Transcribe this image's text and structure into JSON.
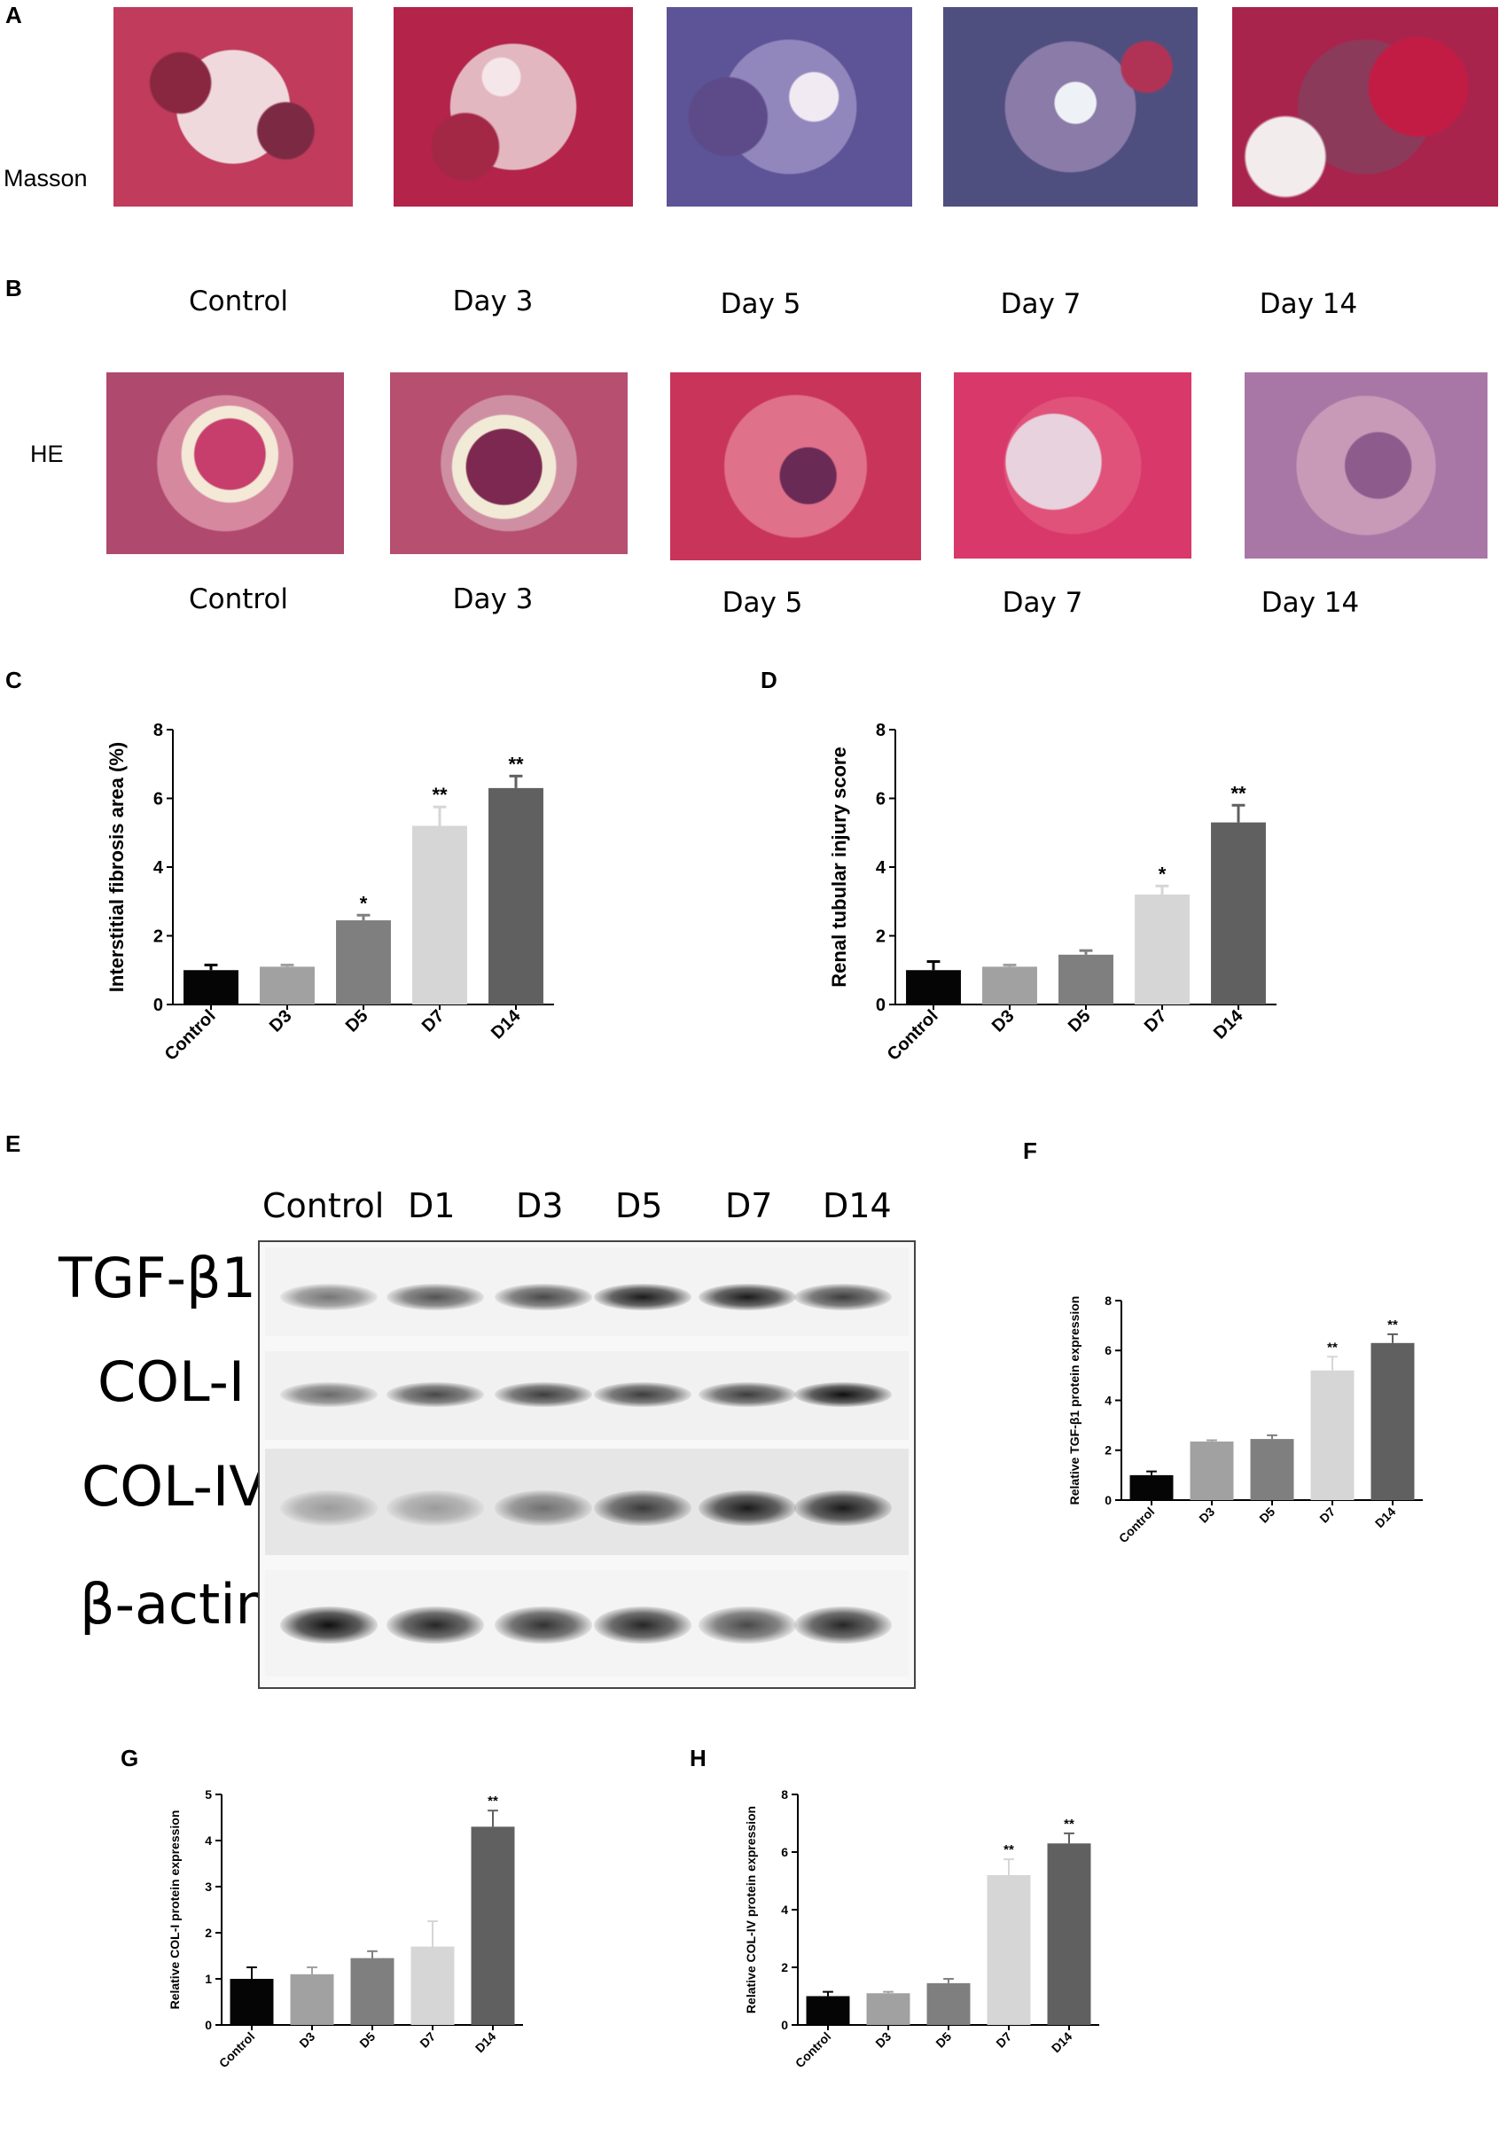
{
  "panels": {
    "A": "A",
    "B": "B",
    "C": "C",
    "D": "D",
    "E": "E",
    "F": "F",
    "G": "G",
    "H": "H"
  },
  "row_labels": {
    "masson": "Masson",
    "he": "HE"
  },
  "captions_a": [
    "Control",
    "Day 3",
    "Day 5",
    "Day 7",
    "Day 14"
  ],
  "captions_b": [
    "Control",
    "Day 3",
    "Day 5",
    "Day 7",
    "Day 14"
  ],
  "blot": {
    "lanes": [
      "Control",
      "D1",
      "D3",
      "D5",
      "D7",
      "D14"
    ],
    "proteins": [
      "TGF-β1",
      "COL-I",
      "COL-IV",
      "β-actin"
    ],
    "intensity": [
      [
        0.55,
        0.7,
        0.75,
        0.95,
        0.95,
        0.8
      ],
      [
        0.6,
        0.75,
        0.8,
        0.8,
        0.8,
        1.0
      ],
      [
        0.35,
        0.35,
        0.55,
        0.8,
        0.95,
        0.95
      ],
      [
        1.0,
        0.9,
        0.85,
        0.9,
        0.75,
        0.9
      ]
    ]
  },
  "chart_data": [
    {
      "panel": "C",
      "type": "bar",
      "categories": [
        "Control",
        "D3",
        "D5",
        "D7",
        "D14"
      ],
      "values": [
        1.0,
        1.1,
        2.45,
        5.2,
        6.3
      ],
      "errors": [
        0.15,
        0.05,
        0.15,
        0.55,
        0.35
      ],
      "sig": [
        "",
        "",
        "*",
        "**",
        "**"
      ],
      "colors": [
        "#050505",
        "#a1a1a1",
        "#7f7f7f",
        "#d6d6d6",
        "#606060"
      ],
      "ylabel": "Interstitial fibrosis area (%)",
      "ylim": [
        0,
        8
      ],
      "yticks": [
        "0",
        "2",
        "4",
        "6",
        "8"
      ]
    },
    {
      "panel": "D",
      "type": "bar",
      "categories": [
        "Control",
        "D3",
        "D5",
        "D7",
        "D14"
      ],
      "values": [
        1.0,
        1.1,
        1.45,
        3.2,
        5.3
      ],
      "errors": [
        0.25,
        0.05,
        0.12,
        0.25,
        0.5
      ],
      "sig": [
        "",
        "",
        "",
        "*",
        "**"
      ],
      "colors": [
        "#050505",
        "#a1a1a1",
        "#7f7f7f",
        "#d6d6d6",
        "#606060"
      ],
      "ylabel": "Renal tubular injury score",
      "ylim": [
        0,
        8
      ],
      "yticks": [
        "0",
        "2",
        "4",
        "6",
        "8"
      ]
    },
    {
      "panel": "F",
      "type": "bar",
      "categories": [
        "Control",
        "D3",
        "D5",
        "D7",
        "D14"
      ],
      "values": [
        1.0,
        2.35,
        2.45,
        5.2,
        6.3
      ],
      "errors": [
        0.15,
        0.05,
        0.15,
        0.55,
        0.35
      ],
      "sig": [
        "",
        "",
        "",
        "**",
        "**"
      ],
      "colors": [
        "#050505",
        "#a1a1a1",
        "#7f7f7f",
        "#d6d6d6",
        "#606060"
      ],
      "ylabel": "Relative TGF-β1 protein expression",
      "ylim": [
        0,
        8
      ],
      "yticks": [
        "0",
        "2",
        "4",
        "6",
        "8"
      ]
    },
    {
      "panel": "G",
      "type": "bar",
      "categories": [
        "Control",
        "D3",
        "D5",
        "D7",
        "D14"
      ],
      "values": [
        1.0,
        1.1,
        1.45,
        1.7,
        4.3
      ],
      "errors": [
        0.25,
        0.15,
        0.15,
        0.55,
        0.35
      ],
      "sig": [
        "",
        "",
        "",
        "",
        "**"
      ],
      "colors": [
        "#050505",
        "#a1a1a1",
        "#7f7f7f",
        "#d6d6d6",
        "#606060"
      ],
      "ylabel": "Relative COL-I protein expression",
      "ylim": [
        0,
        5
      ],
      "yticks": [
        "0",
        "1",
        "2",
        "3",
        "4",
        "5"
      ]
    },
    {
      "panel": "H",
      "type": "bar",
      "categories": [
        "Control",
        "D3",
        "D5",
        "D7",
        "D14"
      ],
      "values": [
        1.0,
        1.1,
        1.45,
        5.2,
        6.3
      ],
      "errors": [
        0.15,
        0.05,
        0.15,
        0.55,
        0.35
      ],
      "sig": [
        "",
        "",
        "",
        "**",
        "**"
      ],
      "colors": [
        "#050505",
        "#a1a1a1",
        "#7f7f7f",
        "#d6d6d6",
        "#606060"
      ],
      "ylabel": "Relative COL-IV protein expression",
      "ylim": [
        0,
        8
      ],
      "yticks": [
        "0",
        "2",
        "4",
        "6",
        "8"
      ]
    }
  ]
}
